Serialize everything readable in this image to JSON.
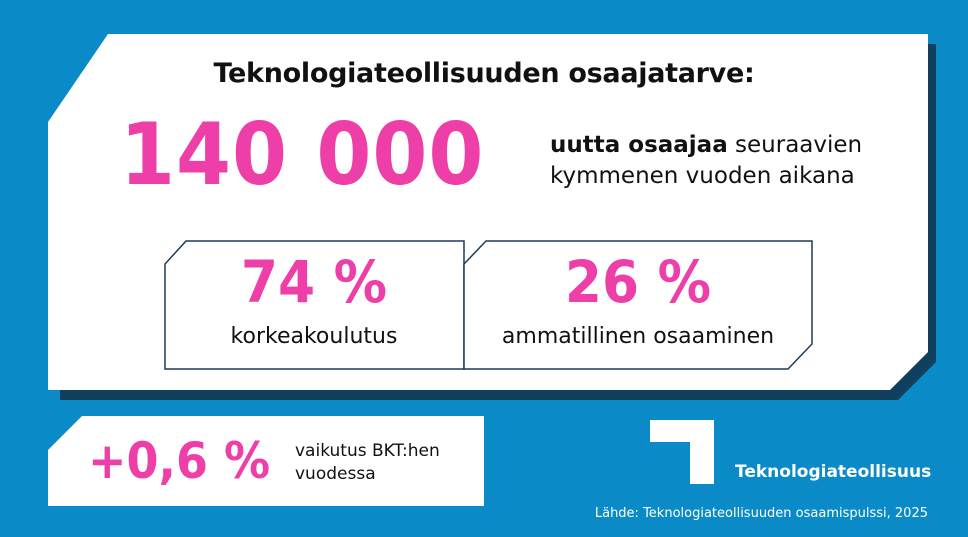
{
  "headline": {
    "title": "Teknologiateollisuuden osaajatarve:",
    "big_number": "140 000",
    "desc_bold": "uutta osaajaa",
    "desc_rest_line1": "seuraavien",
    "desc_line2": "kymmenen vuoden aikana"
  },
  "stats": [
    {
      "percent": "74 %",
      "label": "korkeakoulutus"
    },
    {
      "percent": "26 %",
      "label": "ammatillinen osaaminen"
    }
  ],
  "gdp": {
    "percent": "+0,6 %",
    "desc_line1": "vaikutus BKT:hen",
    "desc_line2": "vuodessa"
  },
  "brand": {
    "name": "Teknologiateollisuus",
    "logo_icon": "corner-bracket-logo-icon"
  },
  "source": "Lähde: Teknologiateollisuuden osaamispulssi, 2025",
  "colors": {
    "background": "#0a8bc7",
    "accent": "#ee3ea8",
    "panel": "#ffffff",
    "shadow": "#10405e"
  }
}
